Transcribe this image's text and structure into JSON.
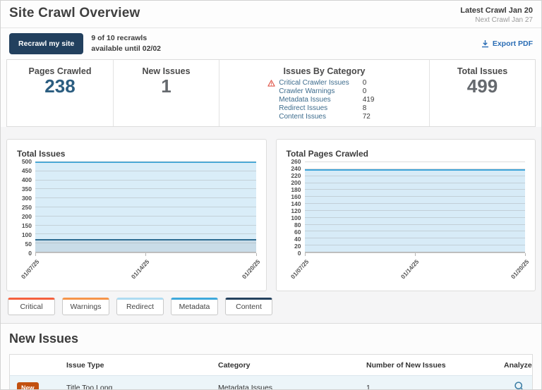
{
  "header": {
    "title": "Site Crawl Overview",
    "latest_crawl": "Latest Crawl Jan 20",
    "next_crawl": "Next Crawl Jan 27"
  },
  "toolbar": {
    "recrawl_button": "Recrawl my site",
    "recrawl_info_line1": "9 of 10 recrawls",
    "recrawl_info_line2": "available until 02/02",
    "export_pdf": "Export PDF"
  },
  "icons": {
    "export": "download-icon",
    "critical": "warning-triangle-icon",
    "analyze": "magnifier-icon"
  },
  "stats": {
    "pages_crawled": {
      "label": "Pages Crawled",
      "value": "238"
    },
    "new_issues": {
      "label": "New Issues",
      "value": "1"
    },
    "issues_by_category": {
      "label": "Issues By Category",
      "items": [
        {
          "label": "Critical Crawler Issues",
          "value": "0",
          "warning": true
        },
        {
          "label": "Crawler Warnings",
          "value": "0",
          "warning": false
        },
        {
          "label": "Metadata Issues",
          "value": "419",
          "warning": false
        },
        {
          "label": "Redirect Issues",
          "value": "8",
          "warning": false
        },
        {
          "label": "Content Issues",
          "value": "72",
          "warning": false
        }
      ]
    },
    "total_issues": {
      "label": "Total Issues",
      "value": "499"
    }
  },
  "chart_data": [
    {
      "type": "area",
      "stacked": true,
      "title": "Total Issues",
      "x": [
        "01/07/25",
        "01/14/25",
        "01/20/25"
      ],
      "series": [
        {
          "name": "Content Issues",
          "values": [
            72,
            72,
            72
          ],
          "fill": "#c9dce8",
          "line": "#2e6d92"
        },
        {
          "name": "Metadata Issues",
          "values": [
            419,
            419,
            419
          ],
          "fill": "#d9edf8",
          "line": null
        },
        {
          "name": "Redirect Issues",
          "values": [
            8,
            8,
            8
          ],
          "fill": "#62bce5",
          "line": "#3fa9dc"
        }
      ],
      "ylim": [
        0,
        500
      ],
      "ytick_step": 50,
      "grid": true,
      "legend_position": "below"
    },
    {
      "type": "area",
      "stacked": false,
      "title": "Total Pages Crawled",
      "x": [
        "01/07/25",
        "01/14/25",
        "01/20/25"
      ],
      "series": [
        {
          "name": "Pages Crawled",
          "values": [
            238,
            238,
            238
          ],
          "fill": "#d7ebf7",
          "line": "#3fa5d9"
        }
      ],
      "ylim": [
        0,
        260
      ],
      "ytick_step": 20,
      "grid": true
    }
  ],
  "legend": {
    "items": [
      {
        "label": "Critical",
        "color": "#f4603e"
      },
      {
        "label": "Warnings",
        "color": "#f6954a"
      },
      {
        "label": "Redirect",
        "color": "#aedcf2"
      },
      {
        "label": "Metadata",
        "color": "#3fa9dc"
      },
      {
        "label": "Content",
        "color": "#24425e"
      }
    ]
  },
  "new_issues": {
    "title": "New Issues",
    "table": {
      "columns": [
        "Issue Type",
        "Category",
        "Number of New Issues",
        "Analyze"
      ],
      "rows": [
        {
          "badge": "New",
          "issue_type": "Title Too Long",
          "category": "Metadata Issues",
          "count": "1"
        }
      ]
    }
  }
}
